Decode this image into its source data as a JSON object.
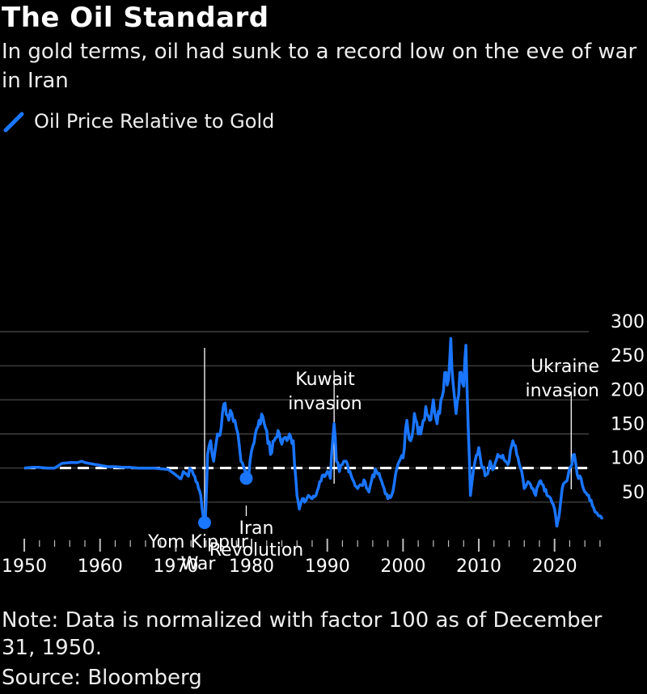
{
  "header": {
    "title": "The Oil Standard",
    "subtitle": "In gold terms, oil had sunk to a record low on the eve of war in Iran"
  },
  "legend": {
    "label": "Oil Price Relative to Gold",
    "color": "#1a75ff"
  },
  "chart_data": {
    "type": "line",
    "title": "The Oil Standard",
    "xlabel": "",
    "ylabel": "",
    "xlim": [
      1948.5,
      2029
    ],
    "ylim": [
      0,
      300
    ],
    "x_ticks": [
      1950,
      1960,
      1970,
      1980,
      1990,
      2000,
      2010,
      2020
    ],
    "x_tick_labels": [
      "1950",
      "1960",
      "1970",
      "1980",
      "1990",
      "2000",
      "2010",
      "2020"
    ],
    "y_ticks": [
      50,
      100,
      150,
      200,
      250,
      300
    ],
    "y_tick_labels": [
      "50",
      "100",
      "150",
      "200",
      "250",
      "300"
    ],
    "grid": true,
    "baseline": {
      "value": 100,
      "style": "dashed",
      "color": "#ffffff"
    },
    "series": [
      {
        "name": "Oil Price Relative to Gold",
        "color": "#1a75ff",
        "x": [
          1950,
          1951,
          1952,
          1953,
          1954,
          1955,
          1956,
          1957,
          1957.6,
          1958,
          1959,
          1960,
          1961,
          1962,
          1963,
          1964,
          1965,
          1966,
          1967,
          1968,
          1969,
          1970,
          1970.5,
          1971,
          1971.5,
          1972,
          1972.5,
          1973,
          1973.3,
          1973.6,
          1973.9,
          1974.2,
          1974.6,
          1975,
          1975.5,
          1976,
          1976.5,
          1977,
          1977.4,
          1977.8,
          1978.2,
          1978.6,
          1979,
          1979.3,
          1979.6,
          1980,
          1980.5,
          1981,
          1981.5,
          1982,
          1982.5,
          1983,
          1983.5,
          1984,
          1984.5,
          1985,
          1985.5,
          1986,
          1986.3,
          1986.7,
          1987,
          1987.5,
          1988,
          1988.5,
          1989,
          1989.5,
          1990,
          1990.4,
          1990.7,
          1990.9,
          1991.2,
          1991.6,
          1992,
          1992.5,
          1993,
          1993.5,
          1994,
          1994.5,
          1995,
          1995.5,
          1996,
          1996.5,
          1997,
          1997.5,
          1998,
          1998.5,
          1999,
          1999.5,
          2000,
          2000.5,
          2001,
          2001.5,
          2002,
          2002.5,
          2003,
          2003.5,
          2004,
          2004.5,
          2005,
          2005.5,
          2006,
          2006.3,
          2006.6,
          2007,
          2007.5,
          2008,
          2008.3,
          2008.6,
          2008.9,
          2009.1,
          2009.5,
          2010,
          2010.5,
          2011,
          2011.5,
          2012,
          2012.5,
          2013,
          2013.5,
          2014,
          2014.5,
          2015,
          2015.5,
          2016,
          2016.5,
          2017,
          2017.5,
          2018,
          2018.5,
          2019,
          2019.5,
          2020,
          2020.3,
          2020.6,
          2021,
          2021.5,
          2022,
          2022.3,
          2022.6,
          2023,
          2023.5,
          2024,
          2024.5,
          2025,
          2025.5,
          2026,
          2026.3
        ],
        "values": [
          100,
          101,
          101,
          100,
          100,
          107,
          108,
          108,
          110,
          108,
          106,
          104,
          102,
          102,
          101,
          101,
          100,
          100,
          100,
          99,
          98,
          90,
          85,
          95,
          90,
          98,
          88,
          70,
          60,
          30,
          20,
          120,
          140,
          110,
          150,
          160,
          195,
          170,
          180,
          170,
          150,
          110,
          100,
          95,
          85,
          125,
          150,
          170,
          175,
          155,
          120,
          140,
          155,
          135,
          145,
          150,
          140,
          60,
          40,
          55,
          50,
          60,
          55,
          60,
          80,
          90,
          95,
          85,
          140,
          165,
          110,
          95,
          105,
          110,
          95,
          80,
          70,
          75,
          80,
          65,
          90,
          95,
          85,
          70,
          55,
          60,
          90,
          110,
          115,
          170,
          140,
          180,
          150,
          160,
          190,
          170,
          200,
          165,
          200,
          240,
          230,
          290,
          225,
          180,
          240,
          220,
          280,
          160,
          60,
          80,
          110,
          130,
          100,
          90,
          110,
          100,
          120,
          115,
          110,
          110,
          140,
          120,
          100,
          70,
          80,
          70,
          60,
          80,
          75,
          60,
          55,
          40,
          15,
          30,
          70,
          80,
          100,
          105,
          120,
          90,
          85,
          65,
          60,
          45,
          35,
          30,
          25
        ]
      }
    ],
    "annotations": [
      {
        "label": "Yom Kippur War",
        "x": 1973.8,
        "y": 20
      },
      {
        "label": "Iran Revolution",
        "x": 1979.3,
        "y": 85
      },
      {
        "label": "Kuwait invasion",
        "x": 1990.9,
        "y": 165
      },
      {
        "label": "Ukraine invasion",
        "x": 2022.2,
        "y": 120
      }
    ]
  },
  "footer": {
    "note": "Note: Data is normalized with factor 100 as of December 31, 1950.",
    "source": "Source: Bloomberg"
  }
}
